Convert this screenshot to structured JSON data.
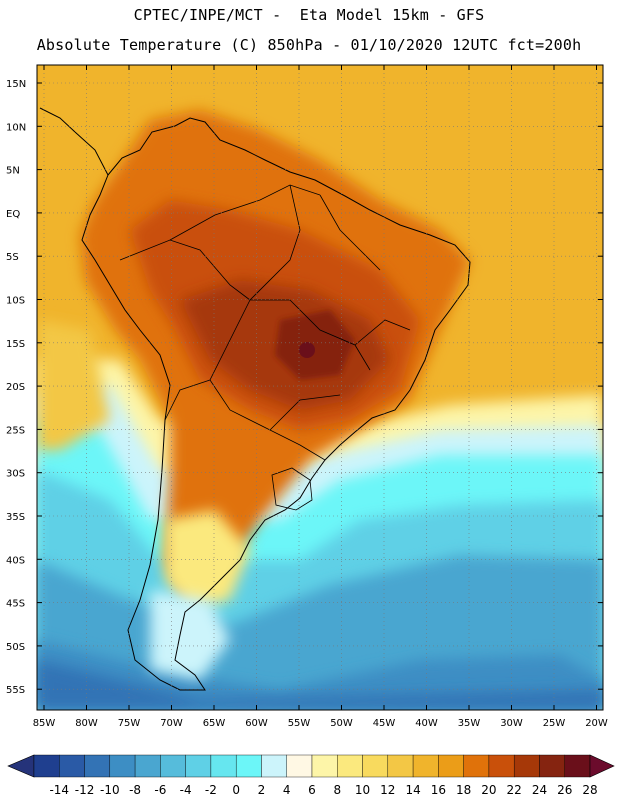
{
  "header": {
    "line1": "CPTEC/INPE/MCT -  Eta Model 15km - GFS",
    "line2": "Absolute Temperature (C) 850hPa - 01/10/2020 12UTC fct=200h"
  },
  "axes": {
    "lat_labels": [
      "15N",
      "10N",
      "5N",
      "EQ",
      "5S",
      "10S",
      "15S",
      "20S",
      "25S",
      "30S",
      "35S",
      "40S",
      "45S",
      "50S",
      "55S"
    ],
    "lon_labels": [
      "85W",
      "80W",
      "75W",
      "70W",
      "65W",
      "60W",
      "55W",
      "50W",
      "45W",
      "40W",
      "35W",
      "30W",
      "25W",
      "20W"
    ]
  },
  "colorbar": {
    "labels": [
      "-14",
      "-12",
      "-10",
      "-8",
      "-6",
      "-4",
      "-2",
      "0",
      "2",
      "4",
      "6",
      "8",
      "10",
      "12",
      "14",
      "16",
      "18",
      "20",
      "22",
      "24",
      "26",
      "28"
    ],
    "colors": [
      "#1f3f8f",
      "#2a5aa6",
      "#3373b5",
      "#3d8ec4",
      "#4aa6d0",
      "#56bcdb",
      "#5fd0e6",
      "#66e6ef",
      "#6cf6f8",
      "#ccf4fb",
      "#fff8e4",
      "#fdf5a8",
      "#fbe97e",
      "#f8da5e",
      "#f3c745",
      "#f0b42c",
      "#eb9d18",
      "#e0720a",
      "#c9500a",
      "#a63808",
      "#852410",
      "#6a0f1a"
    ],
    "under_color": "#25337a",
    "over_color": "#6b0b2c"
  }
}
